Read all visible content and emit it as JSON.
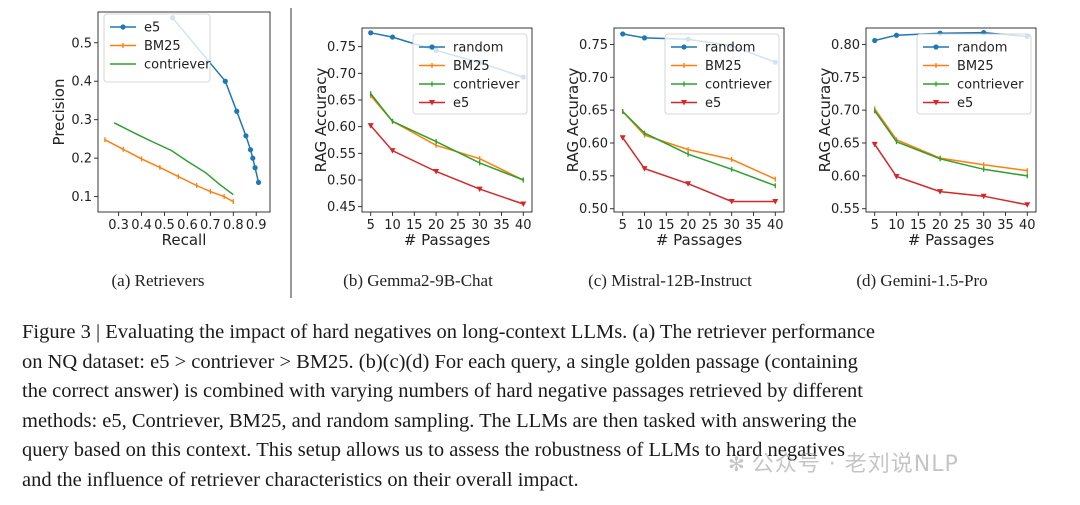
{
  "chart_data": [
    {
      "type": "line",
      "id": "a",
      "caption": "(a) Retrievers",
      "xlabel": "Recall",
      "ylabel": "Precision",
      "xlim": [
        0.21,
        0.96
      ],
      "ylim": [
        0.06,
        0.58
      ],
      "xticks": [
        0.3,
        0.4,
        0.5,
        0.6,
        0.7,
        0.8,
        0.9
      ],
      "xtick_labels": [
        "0.3",
        "0.4",
        "0.5",
        "0.6",
        "0.7",
        "0.8",
        "0.9"
      ],
      "yticks": [
        0.1,
        0.2,
        0.3,
        0.4,
        0.5
      ],
      "ytick_labels": [
        "0.1",
        "0.2",
        "0.3",
        "0.4",
        "0.5"
      ],
      "legend": [
        "e5",
        "BM25",
        "contriever"
      ],
      "series": [
        {
          "name": "e5",
          "color": "#1f77b4",
          "marker": "circle",
          "x": [
            0.535,
            0.765,
            0.815,
            0.855,
            0.875,
            0.885,
            0.895,
            0.91
          ],
          "y": [
            0.565,
            0.4,
            0.322,
            0.258,
            0.222,
            0.2,
            0.175,
            0.137
          ]
        },
        {
          "name": "BM25",
          "color": "#ff7f0e",
          "marker": "tick",
          "x": [
            0.24,
            0.32,
            0.4,
            0.48,
            0.56,
            0.64,
            0.7,
            0.76,
            0.8
          ],
          "y": [
            0.248,
            0.223,
            0.198,
            0.176,
            0.152,
            0.129,
            0.113,
            0.1,
            0.087
          ]
        },
        {
          "name": "contriever",
          "color": "#2ca02c",
          "marker": "none",
          "x": [
            0.28,
            0.38,
            0.45,
            0.53,
            0.6,
            0.68,
            0.74,
            0.8
          ],
          "y": [
            0.292,
            0.262,
            0.242,
            0.22,
            0.192,
            0.162,
            0.132,
            0.105
          ]
        }
      ]
    },
    {
      "type": "line",
      "id": "b",
      "caption": "(b) Gemma2-9B-Chat",
      "xlabel": "# Passages",
      "ylabel": "RAG Accuracy",
      "x": [
        5,
        10,
        20,
        30,
        40
      ],
      "xlim": [
        3,
        42
      ],
      "ylim": [
        0.44,
        0.785
      ],
      "xticks": [
        5,
        10,
        15,
        20,
        25,
        30,
        35,
        40
      ],
      "xtick_labels": [
        "5",
        "10",
        "15",
        "20",
        "25",
        "30",
        "35",
        "40"
      ],
      "yticks": [
        0.45,
        0.5,
        0.55,
        0.6,
        0.65,
        0.7,
        0.75
      ],
      "ytick_labels": [
        "0.45",
        "0.50",
        "0.55",
        "0.60",
        "0.65",
        "0.70",
        "0.75"
      ],
      "legend": [
        "random",
        "BM25",
        "contriever",
        "e5"
      ],
      "series": [
        {
          "name": "random",
          "color": "#1f77b4",
          "marker": "circle",
          "values": [
            0.776,
            0.768,
            0.743,
            0.72,
            0.693
          ]
        },
        {
          "name": "BM25",
          "color": "#ff7f0e",
          "marker": "tick",
          "values": [
            0.658,
            0.61,
            0.565,
            0.54,
            0.5
          ]
        },
        {
          "name": "contriever",
          "color": "#2ca02c",
          "marker": "tick",
          "values": [
            0.662,
            0.61,
            0.572,
            0.532,
            0.5
          ]
        },
        {
          "name": "e5",
          "color": "#d62728",
          "marker": "triangle",
          "values": [
            0.602,
            0.555,
            0.516,
            0.483,
            0.455
          ]
        }
      ]
    },
    {
      "type": "line",
      "id": "c",
      "caption": "(c) Mistral-12B-Instruct",
      "xlabel": "# Passages",
      "ylabel": "RAG Accuracy",
      "x": [
        5,
        10,
        20,
        30,
        40
      ],
      "xlim": [
        3,
        42
      ],
      "ylim": [
        0.495,
        0.775
      ],
      "xticks": [
        5,
        10,
        15,
        20,
        25,
        30,
        35,
        40
      ],
      "xtick_labels": [
        "5",
        "10",
        "15",
        "20",
        "25",
        "30",
        "35",
        "40"
      ],
      "yticks": [
        0.5,
        0.55,
        0.6,
        0.65,
        0.7,
        0.75
      ],
      "ytick_labels": [
        "0.50",
        "0.55",
        "0.60",
        "0.65",
        "0.70",
        "0.75"
      ],
      "legend": [
        "random",
        "BM25",
        "contriever",
        "e5"
      ],
      "series": [
        {
          "name": "random",
          "color": "#1f77b4",
          "marker": "circle",
          "values": [
            0.766,
            0.76,
            0.758,
            0.748,
            0.723
          ]
        },
        {
          "name": "BM25",
          "color": "#ff7f0e",
          "marker": "tick",
          "values": [
            0.648,
            0.612,
            0.59,
            0.575,
            0.545
          ]
        },
        {
          "name": "contriever",
          "color": "#2ca02c",
          "marker": "tick",
          "values": [
            0.648,
            0.615,
            0.583,
            0.56,
            0.535
          ]
        },
        {
          "name": "e5",
          "color": "#d62728",
          "marker": "triangle",
          "values": [
            0.608,
            0.561,
            0.538,
            0.511,
            0.511
          ]
        }
      ]
    },
    {
      "type": "line",
      "id": "d",
      "caption": "(d) Gemini-1.5-Pro",
      "xlabel": "# Passages",
      "ylabel": "RAG Accuracy",
      "x": [
        5,
        10,
        20,
        30,
        40
      ],
      "xlim": [
        3,
        42
      ],
      "ylim": [
        0.545,
        0.825
      ],
      "xticks": [
        5,
        10,
        15,
        20,
        25,
        30,
        35,
        40
      ],
      "xtick_labels": [
        "5",
        "10",
        "15",
        "20",
        "25",
        "30",
        "35",
        "40"
      ],
      "yticks": [
        0.55,
        0.6,
        0.65,
        0.7,
        0.75,
        0.8
      ],
      "ytick_labels": [
        "0.55",
        "0.60",
        "0.65",
        "0.70",
        "0.75",
        "0.80"
      ],
      "legend": [
        "random",
        "BM25",
        "contriever",
        "e5"
      ],
      "series": [
        {
          "name": "random",
          "color": "#1f77b4",
          "marker": "circle",
          "values": [
            0.806,
            0.814,
            0.817,
            0.818,
            0.812
          ]
        },
        {
          "name": "BM25",
          "color": "#ff7f0e",
          "marker": "tick",
          "values": [
            0.702,
            0.655,
            0.627,
            0.617,
            0.608
          ]
        },
        {
          "name": "contriever",
          "color": "#2ca02c",
          "marker": "tick",
          "values": [
            0.699,
            0.652,
            0.626,
            0.61,
            0.6
          ]
        },
        {
          "name": "e5",
          "color": "#d62728",
          "marker": "triangle",
          "values": [
            0.648,
            0.599,
            0.576,
            0.569,
            0.556
          ]
        }
      ]
    }
  ],
  "caption": {
    "label": "Figure 3 |",
    "line1": "Figure 3 | Evaluating the impact of hard negatives on long-context LLMs. (a) The retriever performance",
    "line2": "on NQ dataset: e5 > contriever > BM25. (b)(c)(d) For each query, a single golden passage (containing",
    "line3": "the correct answer) is combined with varying numbers of hard negative passages retrieved by different",
    "line4": "methods: e5, Contriever, BM25, and random sampling. The LLMs are then tasked with answering the",
    "line5": "query based on this context. This setup allows us to assess the robustness of LLMs to hard negatives",
    "line6": "and the influence of retriever characteristics on their overall impact."
  },
  "watermark": "公众号 · 老刘说NLP"
}
